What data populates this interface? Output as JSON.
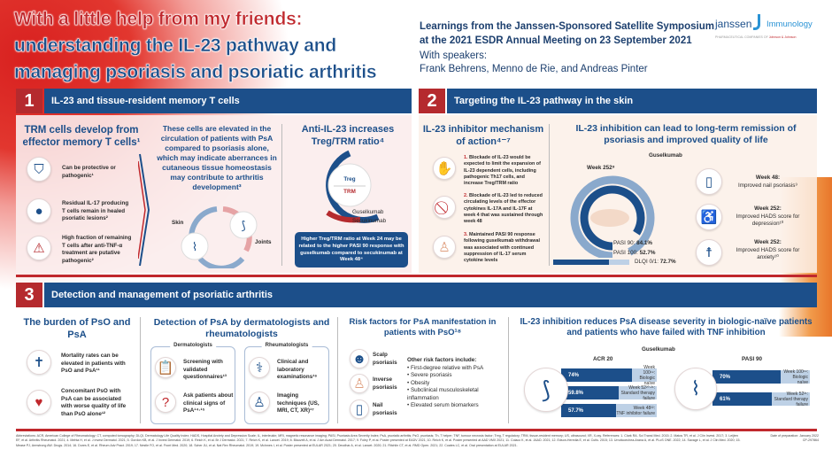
{
  "header": {
    "title_line1": "With a little help from my friends:",
    "title_line2": "understanding the IL-23 pathway and",
    "title_line3": "managing psoriasis and psoriatic arthritis",
    "subtitle_line1": "Learnings from the Janssen-Sponsored Satellite Symposium",
    "subtitle_line2": "at the 2021 ESDR Annual Meeting on 23 September 2021",
    "speakers_label": "With speakers:",
    "speakers": "Frank Behrens, Menno de Rie, and Andreas Pinter",
    "logo": {
      "brand": "janssen",
      "division": "Immunology",
      "tagline": "PHARMACEUTICAL COMPANIES OF",
      "tagline_brand": "Johnson & Johnson"
    }
  },
  "section1": {
    "num": "1",
    "label": "IL-23 and tissue-resident memory T cells",
    "trm_title": "TRM cells develop from effector memory T cells¹",
    "trm_items": [
      "Can be protective or pathogenic¹",
      "Residual IL-17 producing T cells remain in healed psoriatic lesions²",
      "High fraction of remaining T cells after anti-TNF-α treatment are putative pathogenic²"
    ],
    "elevated_text": "These cells are elevated in the circulation of patients with PsA compared to psoriasis alone, which may indicate aberrances in cutaneous tissue homeostasis may contribute to arthritis development³",
    "cycle_skin": "Skin",
    "cycle_joints": "Joints",
    "ratio_title": "Anti-IL-23 increases Treg/TRM ratio⁴",
    "ratio_num": "Treg",
    "ratio_den": "TRM",
    "legend_guselkumab": "Guselkumab",
    "legend_secukinumab": "Secukinumab",
    "ratio_box": "Higher Treg/TRM ratio at Week 24 may be related to the higher PASI 90 response with guselkumab compared to secukinumab at Week 48⁴"
  },
  "section2": {
    "num": "2",
    "label": "Targeting the IL-23 pathway in the skin",
    "moa_title": "IL-23 inhibitor mechanism of action⁴⁻⁷",
    "moa_items": [
      {
        "n": "1.",
        "text": "Blockade of IL-23 would be expected to limit the expansion of IL-23 dependent cells, including pathogenic Th17 cells, and increase Treg/TRM ratio"
      },
      {
        "n": "2.",
        "text": "Blockade of IL-23 led to reduced circulating levels of the effector cytokines IL-17A and IL-17F at week 4 that was sustained through week 48"
      },
      {
        "n": "3.",
        "text": "Maintained PASI 90 response following guselkumab withdrawal was associated with continued suppression of IL-17 serum cytokine levels"
      }
    ],
    "remission_title": "IL-23 inhibition can lead to long-term remission of psoriasis and improved quality of life",
    "drug": "Guselkumab",
    "week": "Week 252⁸",
    "metrics": [
      {
        "label": "PASI 90:",
        "value": "84.1%",
        "pct": 84.1
      },
      {
        "label": "PASI 100:",
        "value": "52.7%",
        "pct": 52.7
      },
      {
        "label": "DLQI 0/1:",
        "value": "72.7%",
        "pct": 72.7
      }
    ],
    "qol": [
      {
        "week": "Week 48:",
        "text": "Improved nail psoriasis⁹"
      },
      {
        "week": "Week 252:",
        "text": "Improved HADS score for depression¹⁰"
      },
      {
        "week": "Week 252:",
        "text": "Improved HADS score for anxiety¹⁰"
      }
    ]
  },
  "section3": {
    "num": "3",
    "label": "Detection and management of psoriatic arthritis",
    "burden_title": "The burden of PsO and PsA",
    "burden_items": [
      "Mortality rates can be elevated in patients with PsO and PsA¹¹",
      "Concomitant PsO with PsA can be associated with worse quality of life than PsO alone¹²"
    ],
    "detection_title": "Detection of PsA by dermatologists and rheumatologists",
    "derm_label": "Dermatologists",
    "derm_items": [
      "Screening with validated questionnaires¹³",
      "Ask patients about clinical signs of PsA¹⁴·¹⁵"
    ],
    "rheum_label": "Rheumatologists",
    "rheum_items": [
      "Clinical and laboratory examinations¹⁶",
      "Imaging techniques (US, MRI, CT, XR)¹⁷"
    ],
    "risk_title": "Risk factors for PsA manifestation in patients with PsO¹⁸",
    "risk_items": [
      "Scalp psoriasis",
      "Inverse psoriasis",
      "Nail psoriasis"
    ],
    "other_title": "Other risk factors include:",
    "other_items": [
      "First-degree relative with PsA",
      "Severe psoriasis",
      "Obesity",
      "Subclinical musculoskeletal inflammation",
      "Elevated serum biomarkers"
    ],
    "severity_title": "IL-23 inhibition reduces PsA disease severity in biologic-naïve patients and patients who have failed with TNF inhibition",
    "drug": "Guselkumab"
  },
  "chart_data": [
    {
      "type": "bar",
      "title": "ACR 20",
      "categories": [
        "Week 100¹⁹: Biologic naïve",
        "Week 52²⁰·²¹: Standard therapy failure",
        "Week 48²²: TNF inhibitor failure"
      ],
      "values": [
        74,
        59.8,
        57.7
      ],
      "labels": [
        "74%",
        "59.8%",
        "57.7%"
      ],
      "ylim": [
        0,
        100
      ]
    },
    {
      "type": "bar",
      "title": "PASI 90",
      "categories": [
        "Week 100¹⁹: Biologic naïve",
        "Week 52²¹: Standard therapy failure"
      ],
      "values": [
        70,
        61
      ],
      "labels": [
        "70%",
        "61%"
      ],
      "ylim": [
        0,
        100
      ]
    }
  ],
  "footer": {
    "abbrev": "Abbreviations: ACR, American College of Rheumatology; CT, computed tomography; DLQI, Dermatology Life Quality Index; HADS, Hospital Anxiety and Depression Scale; IL, interleukin; MRI, magnetic resonance imaging; PASI, Psoriasis Area Severity Index; PsA, psoriatic arthritis; PsO, psoriasis; Th, T helper; TNF, tumour necrosis factor; Treg, T regulatory; TRM, tissue-resident memory; US, ultrasound; XR, X-ray.",
    "refs": "References: 1. Clark RA. Sci Transl Med. 2015; 2. Matos TR, et al. J Clin Invest. 2017; 3. Leijten EF, et al. Arthritis Rheumatol. 2021; 4. Mehta H, et al. J Invest Dermatol. 2021; 5. Gordon KB, et al. J Invest Dermatol. 2019; 6. Reich K, et al. Br J Dermatol. 2021; 7. Reich K, et al. Lancet. 2019; 8. Blauvelt A, et al. J Am Acad Dermatol. 2017; 9. Foley P, et al. Poster presented at EADV 2021; 10. Reich K, et al. Poster presented at AAD VMX 2021; 11. Colaco K, et al. JAAD. 2021; 12. Edson-Heredia E, et al. Cutis. 2015; 13. Urruticoechea-Arana A, et al. PLoS ONE. 2022; 14. Savage L, et al. J Clin Med. 2020; 15. Mease PJ, Armstrong AW. Drugs. 2014; 16. Dures E, et al. Rheum Adv Pract. 2019; 17. Nestle FO, et al. Front Med. 2020; 18. Scher JU, et al. Nat Rev Rheumatol. 2019; 19. McInnes I, et al. Poster presented at EULAR 2021; 20. Deodhar A, et al. Lancet. 2020; 21. Ritchlin CT, et al. RMD Open. 2021; 22. Coates LC, et al. Oral presentation at EULAR 2021.",
    "date": "Date of preparation: January 2022",
    "code": "CP-297864"
  }
}
